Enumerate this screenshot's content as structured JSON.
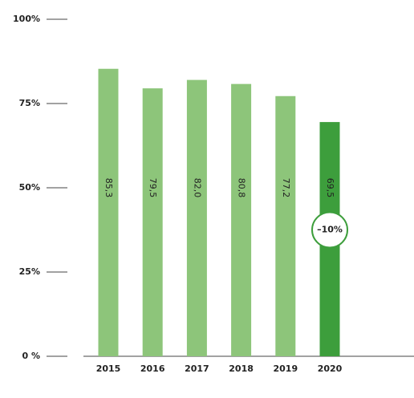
{
  "chart_data": {
    "type": "bar",
    "categories": [
      "2015",
      "2016",
      "2017",
      "2018",
      "2019",
      "2020"
    ],
    "values": [
      85.3,
      79.5,
      82.0,
      80.8,
      77.2,
      69.5
    ],
    "value_labels": [
      "85,3",
      "79,5",
      "82,0",
      "80,8",
      "77,2",
      "69,5"
    ],
    "colors": [
      "#8dc57a",
      "#8dc57a",
      "#8dc57a",
      "#8dc57a",
      "#8dc57a",
      "#3d9e3c"
    ],
    "ylim": [
      0,
      100
    ],
    "yticks": [
      {
        "value": 0,
        "label": "0 %"
      },
      {
        "value": 25,
        "label": "25%"
      },
      {
        "value": 50,
        "label": "50%"
      },
      {
        "value": 75,
        "label": "75%"
      },
      {
        "value": 100,
        "label": "100%"
      }
    ],
    "annotations": [
      {
        "text": "–10%"
      }
    ]
  }
}
